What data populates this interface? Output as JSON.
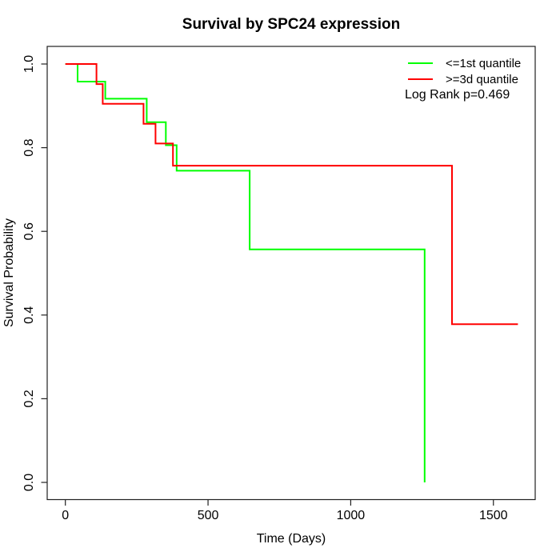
{
  "title": "Survival by SPC24 expression",
  "axes": {
    "xlabel": "Time (Days)",
    "ylabel": "Survival Probability",
    "xticks": [
      "0",
      "500",
      "1000",
      "1500"
    ],
    "yticks": [
      "0.0",
      "0.2",
      "0.4",
      "0.6",
      "0.8",
      "1.0"
    ]
  },
  "chart_data": {
    "type": "line",
    "subtype": "kaplan-meier-step",
    "title": "Survival by SPC24 expression",
    "xlabel": "Time (Days)",
    "ylabel": "Survival Probability",
    "xlim": [
      0,
      1650
    ],
    "ylim": [
      0.0,
      1.0
    ],
    "grid": false,
    "legend_position": "top-right",
    "annotation": "Log Rank p=0.469",
    "colors": {
      "low_group": "#00ff00",
      "high_group": "#ff0000",
      "axis": "#202020",
      "text": "#000000",
      "background": "#ffffff"
    },
    "series": [
      {
        "name": "<=1st quantile",
        "color": "#00ff00",
        "steps": [
          [
            0,
            1.0
          ],
          [
            43,
            0.958
          ],
          [
            140,
            0.917
          ],
          [
            285,
            0.861
          ],
          [
            352,
            0.806
          ],
          [
            390,
            0.745
          ],
          [
            646,
            0.557
          ],
          [
            1259,
            0.0
          ]
        ],
        "end_time": 1259
      },
      {
        "name": ">=3d quantile",
        "color": "#ff0000",
        "steps": [
          [
            0,
            1.0
          ],
          [
            109,
            0.952
          ],
          [
            131,
            0.905
          ],
          [
            274,
            0.857
          ],
          [
            316,
            0.81
          ],
          [
            377,
            0.757
          ],
          [
            1355,
            0.378
          ]
        ],
        "end_time": 1586
      }
    ]
  }
}
